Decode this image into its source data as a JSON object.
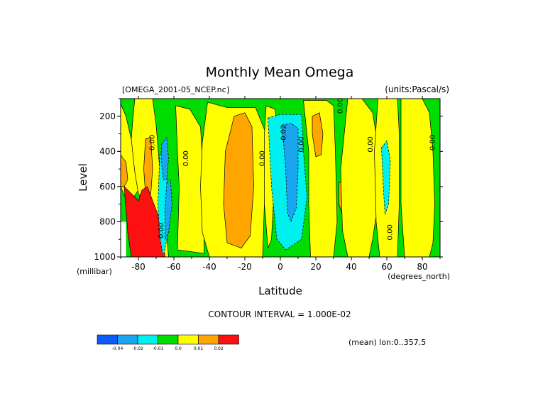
{
  "title": "Monthly Mean Omega",
  "source_file": "[OMEGA_2001-05_NCEP.nc]",
  "units_label": "(units:Pascal/s)",
  "contour_interval_text": "CONTOUR INTERVAL = 1.000E-02",
  "mean_note": "(mean) lon:0..357.5",
  "colors": {
    "blue": "#0a5cff",
    "lightblue": "#1aa6ee",
    "cyan": "#00f0f0",
    "green": "#00dd00",
    "yellow": "#ffff00",
    "orange": "#ffa500",
    "red": "#ff1010"
  },
  "chart_data": {
    "type": "heatmap",
    "title": "Monthly Mean Omega",
    "xlabel": "Latitude",
    "x_unit": "(degrees_north)",
    "ylabel": "Level",
    "y_unit": "(millibar)",
    "xlim": [
      -90,
      90
    ],
    "ylim": [
      1000,
      100
    ],
    "y_inverted": true,
    "x_ticks": [
      {
        "value": -80,
        "label": "-80"
      },
      {
        "value": -60,
        "label": "-60"
      },
      {
        "value": -40,
        "label": "-40"
      },
      {
        "value": -20,
        "label": "-20"
      },
      {
        "value": 0,
        "label": "0"
      },
      {
        "value": 20,
        "label": "20"
      },
      {
        "value": 40,
        "label": "40"
      },
      {
        "value": 60,
        "label": "60"
      },
      {
        "value": 80,
        "label": "80"
      }
    ],
    "y_ticks": [
      {
        "value": 200,
        "label": "200"
      },
      {
        "value": 400,
        "label": "400"
      },
      {
        "value": 600,
        "label": "600"
      },
      {
        "value": 800,
        "label": "800"
      },
      {
        "value": 1000,
        "label": "1000"
      }
    ],
    "contour_interval": 0.01,
    "colorbar": {
      "labels": [
        "-0.04",
        "-0.02",
        "-0.01",
        "0.0",
        "0.01",
        "0.02"
      ],
      "bins": [
        {
          "color": "blue"
        },
        {
          "color": "lightblue"
        },
        {
          "color": "cyan"
        },
        {
          "color": "green"
        },
        {
          "color": "yellow"
        },
        {
          "color": "orange"
        },
        {
          "color": "red"
        }
      ]
    },
    "regions": [
      {
        "color": "yellow",
        "points": [
          [
            -90,
            130
          ],
          [
            -87,
            200
          ],
          [
            -84,
            330
          ],
          [
            -80,
            450
          ],
          [
            -78,
            560
          ],
          [
            -80,
            620
          ],
          [
            -84,
            680
          ],
          [
            -88,
            650
          ],
          [
            -90,
            600
          ]
        ]
      },
      {
        "color": "orange",
        "points": [
          [
            -90,
            420
          ],
          [
            -87,
            460
          ],
          [
            -86,
            560
          ],
          [
            -88,
            600
          ],
          [
            -90,
            600
          ]
        ]
      },
      {
        "color": "yellow",
        "points": [
          [
            -82,
            100
          ],
          [
            -72,
            100
          ],
          [
            -70,
            250
          ],
          [
            -68,
            500
          ],
          [
            -67,
            700
          ],
          [
            -64,
            880
          ],
          [
            -63,
            1000
          ],
          [
            -69,
            1000
          ],
          [
            -72,
            800
          ],
          [
            -76,
            700
          ],
          [
            -80,
            640
          ],
          [
            -82,
            520
          ],
          [
            -84,
            330
          ],
          [
            -83,
            200
          ]
        ]
      },
      {
        "color": "orange",
        "points": [
          [
            -76,
            330
          ],
          [
            -73,
            320
          ],
          [
            -72,
            500
          ],
          [
            -73,
            640
          ],
          [
            -76,
            640
          ],
          [
            -77,
            500
          ]
        ]
      },
      {
        "color": "red",
        "points": [
          [
            -88,
            600
          ],
          [
            -84,
            640
          ],
          [
            -80,
            680
          ],
          [
            -78,
            620
          ],
          [
            -75,
            600
          ],
          [
            -72,
            680
          ],
          [
            -69,
            760
          ],
          [
            -67,
            880
          ],
          [
            -65,
            1000
          ],
          [
            -84,
            1000
          ],
          [
            -86,
            860
          ]
        ]
      },
      {
        "color": "cyan",
        "points": [
          [
            -68,
            420
          ],
          [
            -66,
            400
          ],
          [
            -64,
            560
          ],
          [
            -63,
            760
          ],
          [
            -64,
            900
          ],
          [
            -66,
            1000
          ],
          [
            -68,
            880
          ],
          [
            -69,
            700
          ]
        ]
      },
      {
        "color": "lightblue",
        "points": [
          [
            -67,
            360
          ],
          [
            -64,
            320
          ],
          [
            -63,
            440
          ],
          [
            -64,
            560
          ],
          [
            -66,
            560
          ],
          [
            -67,
            460
          ]
        ]
      },
      {
        "color": "lightblue",
        "points": [
          [
            -64,
            580
          ],
          [
            -62,
            560
          ],
          [
            -61,
            700
          ],
          [
            -63,
            860
          ],
          [
            -65,
            900
          ],
          [
            -65,
            720
          ]
        ]
      },
      {
        "color": "yellow",
        "points": [
          [
            -59,
            140
          ],
          [
            -51,
            160
          ],
          [
            -45,
            260
          ],
          [
            -43,
            600
          ],
          [
            -43,
            980
          ],
          [
            -58,
            960
          ],
          [
            -57,
            600
          ],
          [
            -58,
            400
          ]
        ]
      },
      {
        "color": "yellow",
        "points": [
          [
            -41,
            120
          ],
          [
            -34,
            140
          ],
          [
            -30,
            150
          ],
          [
            -14,
            150
          ],
          [
            -10,
            250
          ],
          [
            -8,
            300
          ],
          [
            -9,
            700
          ],
          [
            -10,
            1000
          ],
          [
            -40,
            1000
          ],
          [
            -44,
            860
          ],
          [
            -45,
            600
          ],
          [
            -44,
            350
          ]
        ]
      },
      {
        "color": "orange",
        "points": [
          [
            -26,
            200
          ],
          [
            -20,
            180
          ],
          [
            -16,
            260
          ],
          [
            -15,
            600
          ],
          [
            -17,
            880
          ],
          [
            -22,
            950
          ],
          [
            -30,
            920
          ],
          [
            -32,
            700
          ],
          [
            -31,
            400
          ]
        ]
      },
      {
        "color": "yellow",
        "points": [
          [
            -8,
            140
          ],
          [
            -3,
            160
          ],
          [
            -1,
            300
          ],
          [
            -3,
            520
          ],
          [
            -5,
            900
          ],
          [
            -7,
            950
          ],
          [
            -9,
            700
          ],
          [
            -9,
            300
          ]
        ]
      },
      {
        "color": "cyan",
        "points": [
          [
            -7,
            210
          ],
          [
            0,
            190
          ],
          [
            12,
            190
          ],
          [
            13,
            400
          ],
          [
            15,
            660
          ],
          [
            12,
            900
          ],
          [
            3,
            960
          ],
          [
            -2,
            900
          ],
          [
            -5,
            600
          ],
          [
            -6,
            400
          ]
        ]
      },
      {
        "color": "lightblue",
        "points": [
          [
            1,
            250
          ],
          [
            6,
            240
          ],
          [
            10,
            270
          ],
          [
            10,
            500
          ],
          [
            9,
            720
          ],
          [
            6,
            800
          ],
          [
            4,
            750
          ],
          [
            3,
            500
          ]
        ]
      },
      {
        "color": "yellow",
        "points": [
          [
            13,
            110
          ],
          [
            26,
            110
          ],
          [
            30,
            140
          ],
          [
            31,
            400
          ],
          [
            32,
            800
          ],
          [
            30,
            1000
          ],
          [
            17,
            1000
          ],
          [
            16,
            700
          ],
          [
            16,
            400
          ]
        ]
      },
      {
        "color": "orange",
        "points": [
          [
            18,
            200
          ],
          [
            22,
            180
          ],
          [
            24,
            300
          ],
          [
            23,
            420
          ],
          [
            20,
            430
          ],
          [
            18,
            300
          ]
        ]
      },
      {
        "color": "orange",
        "points": [
          [
            33,
            580
          ],
          [
            36,
            560
          ],
          [
            37,
            700
          ],
          [
            35,
            760
          ],
          [
            33,
            700
          ]
        ]
      },
      {
        "color": "yellow",
        "points": [
          [
            38,
            100
          ],
          [
            46,
            100
          ],
          [
            52,
            180
          ],
          [
            54,
            300
          ],
          [
            55,
            700
          ],
          [
            52,
            900
          ],
          [
            50,
            1000
          ],
          [
            38,
            1000
          ],
          [
            35,
            850
          ],
          [
            34,
            500
          ]
        ]
      },
      {
        "color": "yellow",
        "points": [
          [
            55,
            100
          ],
          [
            66,
            100
          ],
          [
            67,
            300
          ],
          [
            67,
            700
          ],
          [
            66,
            1000
          ],
          [
            56,
            1000
          ],
          [
            54,
            800
          ],
          [
            53,
            400
          ]
        ]
      },
      {
        "color": "cyan",
        "points": [
          [
            57,
            380
          ],
          [
            60,
            340
          ],
          [
            62,
            450
          ],
          [
            61,
            700
          ],
          [
            59,
            760
          ],
          [
            58,
            600
          ]
        ]
      },
      {
        "color": "yellow",
        "points": [
          [
            68,
            100
          ],
          [
            80,
            100
          ],
          [
            84,
            180
          ],
          [
            86,
            400
          ],
          [
            87,
            700
          ],
          [
            86,
            920
          ],
          [
            84,
            1000
          ],
          [
            70,
            1000
          ],
          [
            68,
            700
          ]
        ]
      }
    ],
    "white_regions": [
      {
        "points": [
          [
            -90,
            800
          ],
          [
            -87,
            800
          ],
          [
            -87,
            1000
          ],
          [
            -90,
            1000
          ]
        ]
      }
    ],
    "contour_labels": [
      {
        "text": "0.00",
        "x": -71,
        "y": 350,
        "rotate": -90
      },
      {
        "text": "0.00",
        "x": -52,
        "y": 440,
        "rotate": -90
      },
      {
        "text": "0.00",
        "x": -9,
        "y": 440,
        "rotate": -90
      },
      {
        "text": "-0.02",
        "x": 3,
        "y": 300,
        "rotate": -90
      },
      {
        "text": "0.00",
        "x": 13,
        "y": 360,
        "rotate": -90
      },
      {
        "text": "0.00",
        "x": 35,
        "y": 140,
        "rotate": -90
      },
      {
        "text": "0.00",
        "x": 52,
        "y": 360,
        "rotate": -90
      },
      {
        "text": "0.00",
        "x": 63,
        "y": 860,
        "rotate": -90
      },
      {
        "text": "0.00",
        "x": 87,
        "y": 350,
        "rotate": -90
      },
      {
        "text": "0.00",
        "x": -66,
        "y": 850,
        "rotate": -90
      }
    ]
  }
}
